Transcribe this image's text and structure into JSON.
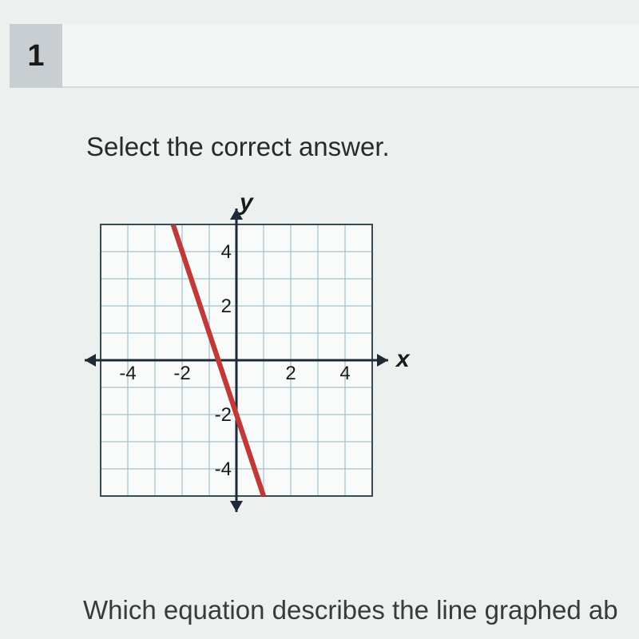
{
  "question": {
    "number": "1",
    "instruction": "Select the correct answer.",
    "footer": "Which equation describes the line graphed ab"
  },
  "chart": {
    "type": "line",
    "width_cells": 10,
    "height_cells": 10,
    "xlim": [
      -5,
      5
    ],
    "ylim": [
      -5,
      5
    ],
    "xtick_labels": [
      "-4",
      "-2",
      "2",
      "4"
    ],
    "xtick_positions": [
      -4,
      -2,
      2,
      4
    ],
    "ytick_labels": [
      "4",
      "2",
      "-2",
      "-4"
    ],
    "ytick_positions": [
      4,
      2,
      -2,
      -4
    ],
    "x_axis_label": "x",
    "y_axis_label": "y",
    "axis_label_fontsize": 30,
    "tick_fontsize": 24,
    "background_color": "#fbfdfc",
    "grid_color": "#a7c1cc",
    "grid_stroke_width": 1.2,
    "frame_color": "#3a4a52",
    "frame_stroke_width": 2,
    "axis_color": "#1e2a36",
    "axis_stroke_width": 3,
    "line": {
      "color": "#c13a3a",
      "stroke_width": 3.5,
      "slope": -3,
      "y_intercept": -2,
      "x_at_y5": -2.333,
      "x_at_yneg5": 1.0
    }
  }
}
